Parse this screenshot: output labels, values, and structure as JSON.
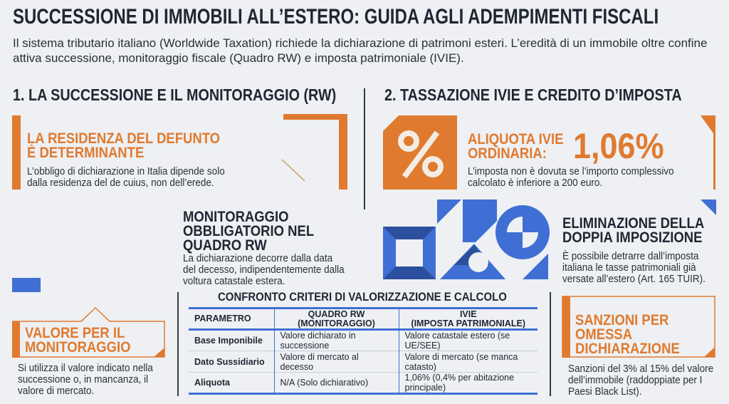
{
  "title": "SUCCESSIONE DI IMMOBILI ALL’ESTERO: GUIDA AGLI ADEMPIMENTI FISCALI",
  "intro": "Il sistema tributario italiano (Worldwide Taxation) richiede la dichiarazione di patrimoni esteri. L’eredità di un immobile oltre confine attiva successione, monitoraggio fiscale (Quadro RW) e imposta patrimoniale (IVIE).",
  "colors": {
    "orange": "#e07a2f",
    "blue": "#3f6fd4",
    "dark_blue": "#2c4f9e",
    "text": "#1f2733"
  },
  "section1": {
    "heading": "1. LA SUCCESSIONE E IL MONITORAGGIO (RW)",
    "residenza": {
      "title_1": "LA RESIDENZA DEL DEFUNTO",
      "title_2": "È DETERMINANTE",
      "body_1": "L’obbligo di dichiarazione in Italia dipende solo",
      "body_2": "dalla residenza del de cuius, non dell’erede."
    },
    "monitoraggio": {
      "title_1": "MONITORAGGIO",
      "title_2": "OBBLIGATORIO NEL",
      "title_3": "QUADRO RW",
      "body_1": "La dichiarazione decorre dalla data",
      "body_2": "del decesso, indipendentemente dalla",
      "body_3": "voltura catastale estera."
    },
    "valore": {
      "title_1": "VALORE PER IL",
      "title_2": "MONITORAGGIO",
      "body_1": "Si utilizza il valore indicato nella",
      "body_2": "successione o, in mancanza, il",
      "body_3": "valore di mercato."
    }
  },
  "section2": {
    "heading": "2. TASSAZIONE IVIE E CREDITO D’IMPOSTA",
    "aliquota": {
      "icon": "percent-icon",
      "title_1": "ALIQUOTA IVIE",
      "title_2": "ORDINARIA:",
      "value": "1,06%",
      "body_1": "L’imposta non è dovuta se l’importo complessivo",
      "body_2": "calcolato è inferiore a 200 euro."
    },
    "doppia": {
      "title_1": "ELIMINAZIONE DELLA",
      "title_2": "DOPPIA IMPOSIZIONE",
      "body_1": "È possibile detrarre dall’imposta",
      "body_2": "italiana le tasse patrimoniali già",
      "body_3": "versate all’estero (Art. 165 TUIR)."
    },
    "sanzioni": {
      "title_1": "SANZIONI PER",
      "title_2": "OMESSA",
      "title_3": "DICHIARAZIONE",
      "body_1": "Sanzioni del 3% al 15% del valore",
      "body_2": "dell’immobile (raddoppiate per I",
      "body_3": "Paesi Black List)."
    }
  },
  "table": {
    "title": "CONFRONTO CRITERI DI VALORIZZAZIONE E CALCOLO",
    "headers": [
      {
        "l1": "PARAMETRO",
        "l2": ""
      },
      {
        "l1": "QUADRO RW",
        "l2": "(MONITORAGGIO)"
      },
      {
        "l1": "IVIE",
        "l2": "(IMPOSTA PATRIMONIALE)"
      }
    ],
    "rows": [
      [
        "Base Imponibile",
        "Valore dichiarato in successione",
        "Valore catastale estero (se UE/SEE)"
      ],
      [
        "Dato Sussidiario",
        "Valore di mercato al decesso",
        "Valore di mercato (se manca catasto)"
      ],
      [
        "Aliquota",
        "N/A (Solo dichiarativo)",
        "1,06% (0,4% per abitazione principale)"
      ]
    ]
  }
}
